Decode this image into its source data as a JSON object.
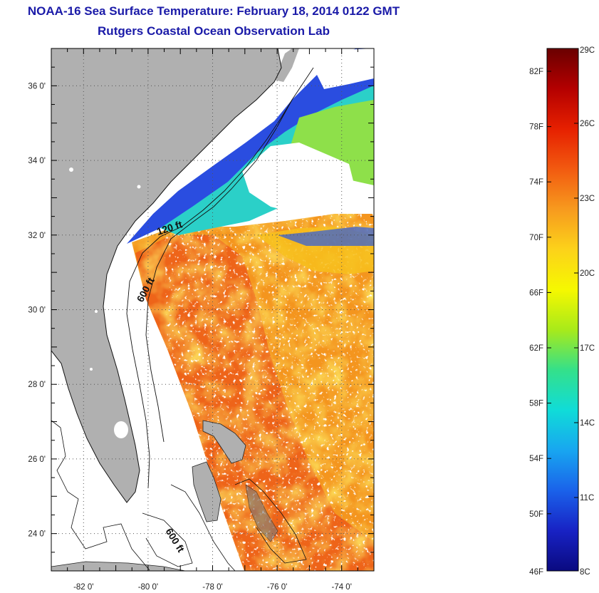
{
  "header": {
    "title_line1": "NOAA-16 Sea Surface Temperature:  February 18, 2014 0122 GMT",
    "title_line2": "Rutgers Coastal Ocean Observation Lab"
  },
  "map": {
    "lon_range": [
      -83,
      -73
    ],
    "lat_range": [
      23,
      37
    ],
    "lon_ticks": [
      {
        "value": -82,
        "label": "-82 0'"
      },
      {
        "value": -80,
        "label": "-80 0'"
      },
      {
        "value": -78,
        "label": "-78 0'"
      },
      {
        "value": -76,
        "label": "-76 0'"
      },
      {
        "value": -74,
        "label": "-74 0'"
      }
    ],
    "lat_ticks": [
      {
        "value": 24,
        "label": "24 0'"
      },
      {
        "value": 26,
        "label": "26 0'"
      },
      {
        "value": 28,
        "label": "28 0'"
      },
      {
        "value": 30,
        "label": "30 0'"
      },
      {
        "value": 32,
        "label": "32 0'"
      },
      {
        "value": 34,
        "label": "34 0'"
      },
      {
        "value": 36,
        "label": "36 0'"
      }
    ],
    "contour_labels": [
      "120 ft",
      "600 ft",
      "600 ft"
    ],
    "colors": {
      "land": "#b0b0b0",
      "cloud": "#ffffff",
      "cold_shelf": "#1a3ad8",
      "warm_stream": "#f06a1c"
    }
  },
  "colorbar": {
    "fahrenheit_labels": [
      "82F",
      "78F",
      "74F",
      "70F",
      "66F",
      "62F",
      "58F",
      "54F",
      "50F",
      "46F"
    ],
    "celsius_labels": [
      "29C",
      "26C",
      "23C",
      "20C",
      "17C",
      "14C",
      "11C",
      "8C"
    ],
    "colors_top_to_bottom": [
      "#6a0000",
      "#b40000",
      "#e62000",
      "#f25a10",
      "#f79a1e",
      "#fcd21a",
      "#f6f800",
      "#a8ea1a",
      "#34e08a",
      "#10dcd8",
      "#18a6f0",
      "#1a62ea",
      "#1822c4",
      "#0a0a80"
    ]
  }
}
